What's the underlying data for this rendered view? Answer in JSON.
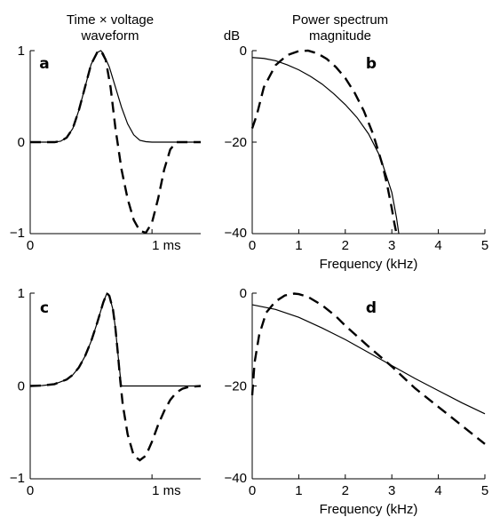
{
  "header": {
    "left_line1": "Time × voltage",
    "left_line2": "waveform",
    "right_line1": "Power spectrum",
    "right_line2": "magnitude",
    "db_label": "dB"
  },
  "chart_data": [
    {
      "id": "a",
      "type": "line",
      "panel_label": "a",
      "xlabel": "",
      "ylabel": "",
      "xlim": [
        0,
        1.4
      ],
      "ylim": [
        -1,
        1
      ],
      "x_ticks": [
        {
          "value": 0,
          "label": "0"
        },
        {
          "value": 1.0,
          "label": "1 ms"
        }
      ],
      "y_ticks": [
        {
          "value": 1,
          "label": "1"
        },
        {
          "value": 0,
          "label": "0"
        },
        {
          "value": -1,
          "label": "−1"
        }
      ],
      "grid": false,
      "series": [
        {
          "style": "solid",
          "x": [
            0,
            0.1,
            0.2,
            0.25,
            0.3,
            0.35,
            0.4,
            0.45,
            0.5,
            0.55,
            0.58,
            0.6,
            0.65,
            0.7,
            0.75,
            0.8,
            0.85,
            0.9,
            0.95,
            1.0,
            1.1,
            1.2,
            1.4
          ],
          "y": [
            0,
            0,
            0,
            0.01,
            0.05,
            0.15,
            0.35,
            0.6,
            0.85,
            0.98,
            1.0,
            0.97,
            0.82,
            0.6,
            0.38,
            0.2,
            0.08,
            0.02,
            0.005,
            0,
            0,
            0,
            0
          ]
        },
        {
          "style": "dashed",
          "x": [
            0,
            0.1,
            0.2,
            0.25,
            0.3,
            0.35,
            0.4,
            0.45,
            0.5,
            0.55,
            0.58,
            0.62,
            0.66,
            0.7,
            0.75,
            0.8,
            0.85,
            0.9,
            0.95,
            1.0,
            1.05,
            1.1,
            1.15,
            1.2,
            1.25,
            1.4
          ],
          "y": [
            0,
            0,
            0,
            0.01,
            0.05,
            0.15,
            0.35,
            0.6,
            0.85,
            0.98,
            1.0,
            0.9,
            0.6,
            0.15,
            -0.3,
            -0.62,
            -0.85,
            -0.97,
            -0.99,
            -0.88,
            -0.62,
            -0.3,
            -0.08,
            0,
            0,
            0
          ]
        }
      ]
    },
    {
      "id": "b",
      "type": "line",
      "panel_label": "b",
      "xlabel": "Frequency (kHz)",
      "ylabel": "",
      "xlim": [
        0,
        5
      ],
      "ylim": [
        -40,
        0
      ],
      "x_ticks": [
        {
          "value": 0,
          "label": "0"
        },
        {
          "value": 1,
          "label": "1"
        },
        {
          "value": 2,
          "label": "2"
        },
        {
          "value": 3,
          "label": "3"
        },
        {
          "value": 4,
          "label": "4"
        },
        {
          "value": 5,
          "label": "5"
        }
      ],
      "y_ticks": [
        {
          "value": 0,
          "label": "0"
        },
        {
          "value": -20,
          "label": "−20"
        },
        {
          "value": -40,
          "label": "−40"
        }
      ],
      "grid": false,
      "series": [
        {
          "style": "solid",
          "x": [
            0,
            0.25,
            0.5,
            0.75,
            1,
            1.25,
            1.5,
            1.75,
            2,
            2.25,
            2.5,
            2.75,
            3,
            3.1,
            3.15
          ],
          "y": [
            -1.5,
            -1.7,
            -2.2,
            -3.1,
            -4.2,
            -5.6,
            -7.3,
            -9.4,
            -11.8,
            -14.6,
            -18.2,
            -23.2,
            -31,
            -36.5,
            -40
          ]
        },
        {
          "style": "dashed",
          "x": [
            0,
            0.1,
            0.25,
            0.5,
            0.75,
            1,
            1.2,
            1.4,
            1.6,
            1.8,
            2,
            2.2,
            2.4,
            2.6,
            2.8,
            2.9,
            3,
            3.05,
            3.1
          ],
          "y": [
            -17,
            -14,
            -8,
            -3.2,
            -1,
            -0.1,
            0,
            -0.6,
            -1.8,
            -3.6,
            -6,
            -9.2,
            -13.2,
            -18.3,
            -25,
            -29.4,
            -34.5,
            -37.5,
            -40
          ]
        }
      ]
    },
    {
      "id": "c",
      "type": "line",
      "panel_label": "c",
      "xlabel": "",
      "ylabel": "",
      "xlim": [
        0,
        1.4
      ],
      "ylim": [
        -1,
        1
      ],
      "x_ticks": [
        {
          "value": 0,
          "label": "0"
        },
        {
          "value": 1.0,
          "label": "1 ms"
        }
      ],
      "y_ticks": [
        {
          "value": 1,
          "label": "1"
        },
        {
          "value": 0,
          "label": "0"
        },
        {
          "value": -1,
          "label": "−1"
        }
      ],
      "grid": false,
      "series": [
        {
          "style": "solid",
          "x": [
            0,
            0.1,
            0.2,
            0.3,
            0.35,
            0.4,
            0.45,
            0.5,
            0.55,
            0.6,
            0.63,
            0.65,
            0.68,
            0.7,
            0.72,
            0.74,
            0.75,
            0.78,
            1.4
          ],
          "y": [
            0,
            0.005,
            0.02,
            0.07,
            0.12,
            0.2,
            0.32,
            0.48,
            0.68,
            0.9,
            1.0,
            0.97,
            0.82,
            0.62,
            0.35,
            0.1,
            0,
            0,
            0
          ]
        },
        {
          "style": "dashed",
          "x": [
            0,
            0.1,
            0.2,
            0.3,
            0.35,
            0.4,
            0.45,
            0.5,
            0.55,
            0.6,
            0.63,
            0.65,
            0.68,
            0.7,
            0.72,
            0.74,
            0.76,
            0.8,
            0.85,
            0.9,
            0.95,
            1.0,
            1.05,
            1.1,
            1.15,
            1.2,
            1.25,
            1.3,
            1.4
          ],
          "y": [
            0,
            0.005,
            0.02,
            0.07,
            0.12,
            0.2,
            0.32,
            0.48,
            0.68,
            0.9,
            1.0,
            0.97,
            0.82,
            0.62,
            0.35,
            0.05,
            -0.2,
            -0.52,
            -0.75,
            -0.8,
            -0.75,
            -0.6,
            -0.42,
            -0.27,
            -0.15,
            -0.07,
            -0.03,
            -0.01,
            0
          ]
        }
      ]
    },
    {
      "id": "d",
      "type": "line",
      "panel_label": "d",
      "xlabel": "Frequency (kHz)",
      "ylabel": "",
      "xlim": [
        0,
        5
      ],
      "ylim": [
        -40,
        0
      ],
      "x_ticks": [
        {
          "value": 0,
          "label": "0"
        },
        {
          "value": 1,
          "label": "1"
        },
        {
          "value": 2,
          "label": "2"
        },
        {
          "value": 3,
          "label": "3"
        },
        {
          "value": 4,
          "label": "4"
        },
        {
          "value": 5,
          "label": "5"
        }
      ],
      "y_ticks": [
        {
          "value": 0,
          "label": "0"
        },
        {
          "value": -20,
          "label": "−20"
        },
        {
          "value": -40,
          "label": "−40"
        }
      ],
      "grid": false,
      "series": [
        {
          "style": "solid",
          "x": [
            0,
            0.5,
            1,
            1.5,
            2,
            2.5,
            3,
            3.5,
            4,
            4.5,
            5
          ],
          "y": [
            -2.5,
            -3.5,
            -5.2,
            -7.5,
            -10,
            -12.8,
            -15.6,
            -18.4,
            -21,
            -23.6,
            -26
          ]
        },
        {
          "style": "dashed",
          "x": [
            0,
            0.05,
            0.15,
            0.3,
            0.5,
            0.7,
            0.9,
            1,
            1.2,
            1.5,
            1.8,
            2,
            2.5,
            3,
            3.5,
            4,
            4.5,
            5
          ],
          "y": [
            -22,
            -15,
            -9,
            -4.2,
            -1.8,
            -0.5,
            -0.1,
            -0.2,
            -0.8,
            -2.6,
            -5,
            -7,
            -11.5,
            -15.8,
            -20.5,
            -24.5,
            -28.5,
            -32.5
          ]
        }
      ]
    }
  ]
}
